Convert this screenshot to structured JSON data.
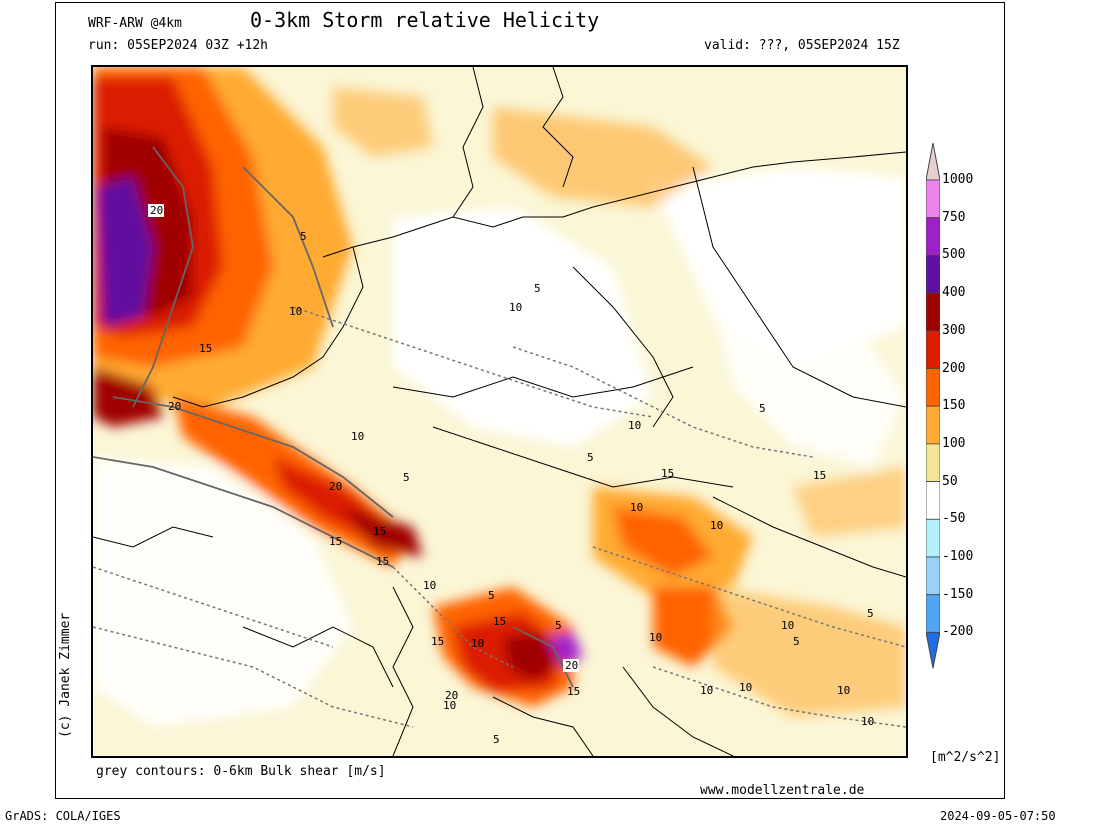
{
  "header": {
    "model": "WRF-ARW @4km",
    "title": "0-3km Storm relative Helicity",
    "run": "run: 05SEP2024 03Z +12h",
    "valid": "valid: ???, 05SEP2024 15Z"
  },
  "credit": "(c) Janek Zimmer",
  "footer": {
    "contours_note": "grey contours: 0-6km Bulk shear [m/s]",
    "website": "www.modellzentrale.de",
    "grads": "GrADS: COLA/IGES",
    "timestamp": "2024-09-05-07:50"
  },
  "colorbar": {
    "unit": "[m^2/s^2]",
    "levels": [
      {
        "label": "1000",
        "color": "#e8d0d0"
      },
      {
        "label": "750",
        "color": "#ee82ee"
      },
      {
        "label": "500",
        "color": "#a020c8"
      },
      {
        "label": "400",
        "color": "#6010a0"
      },
      {
        "label": "300",
        "color": "#a00000"
      },
      {
        "label": "200",
        "color": "#dc1e00"
      },
      {
        "label": "150",
        "color": "#ff6400"
      },
      {
        "label": "100",
        "color": "#ffaa32"
      },
      {
        "label": "50",
        "color": "#f0e696"
      },
      {
        "label": "-50",
        "color": "#ffffff"
      },
      {
        "label": "-100",
        "color": "#b4f0fa"
      },
      {
        "label": "-150",
        "color": "#96d2fa"
      },
      {
        "label": "-200",
        "color": "#50a5f5"
      }
    ],
    "bottom_color": "#1e6ee6"
  },
  "contour_labels": [
    "20",
    "10",
    "15",
    "20",
    "5",
    "10",
    "5",
    "15",
    "10",
    "5",
    "20",
    "15",
    "15",
    "15",
    "5",
    "10",
    "10",
    "15",
    "5",
    "10",
    "15",
    "10",
    "15",
    "10",
    "5",
    "10",
    "20",
    "15",
    "5",
    "10",
    "20",
    "10",
    "5",
    "10",
    "10",
    "10",
    "10",
    "5",
    "5"
  ]
}
